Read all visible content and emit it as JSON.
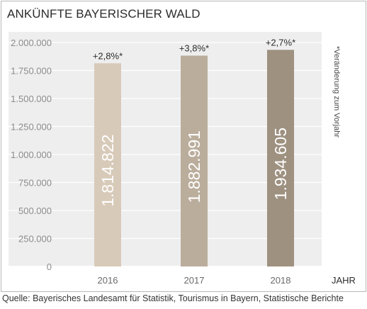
{
  "chart_data": {
    "type": "bar",
    "title": "ANKÜNFTE BAYERISCHER WALD",
    "categories": [
      "2016",
      "2017",
      "2018"
    ],
    "values": [
      1814822,
      1882991,
      1934605
    ],
    "value_labels": [
      "1.814.822",
      "1.882.991",
      "1.934.605"
    ],
    "change_labels": [
      "+2,8%*",
      "+3,8%*",
      "+2,7%*"
    ],
    "bar_colors": [
      "#d8cab9",
      "#bbad9c",
      "#9e9180"
    ],
    "xlabel": "JAHR",
    "ylabel": "",
    "ylim": [
      0,
      2000000
    ],
    "yticks": [
      0,
      250000,
      500000,
      750000,
      1000000,
      1250000,
      1500000,
      1750000,
      2000000
    ],
    "ytick_labels": [
      "0",
      "250.000",
      "500.000",
      "750.000",
      "1.000.000",
      "1.250.000",
      "1.500.000",
      "1.750.000",
      "2.000.000"
    ],
    "grid": true,
    "note": "*Veränderung zum Vorjahr",
    "background_color": "#eeeeef",
    "grid_color": "#ffffff"
  },
  "source": "Quelle: Bayerisches Landesamt für Statistik, Tourismus in Bayern, Statistische Berichte"
}
